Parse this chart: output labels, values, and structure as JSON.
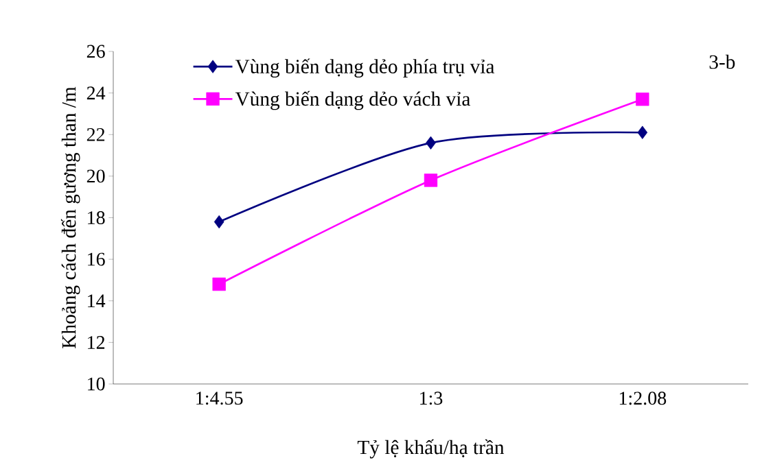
{
  "chart_data": {
    "type": "line",
    "categories": [
      "1:4.55",
      "1:3",
      "1:2.08"
    ],
    "xlabel": "Tỷ lệ khấu/hạ trần",
    "ylabel": "Khoảng cách đến gương than /m",
    "ylim": [
      10,
      26
    ],
    "yticks": [
      10,
      12,
      14,
      16,
      18,
      20,
      22,
      24,
      26
    ],
    "legend": "top left",
    "annotations": [
      "3-b"
    ],
    "series": [
      {
        "name": "Vùng biến dạng dẻo phía trụ vỉa",
        "color": "#000080",
        "marker": "diamond",
        "values": [
          17.8,
          21.6,
          22.1
        ]
      },
      {
        "name": "Vùng biến dạng dẻo vách vỉa",
        "color": "#ff00ff",
        "marker": "square",
        "values": [
          14.8,
          19.8,
          23.7
        ]
      }
    ]
  }
}
